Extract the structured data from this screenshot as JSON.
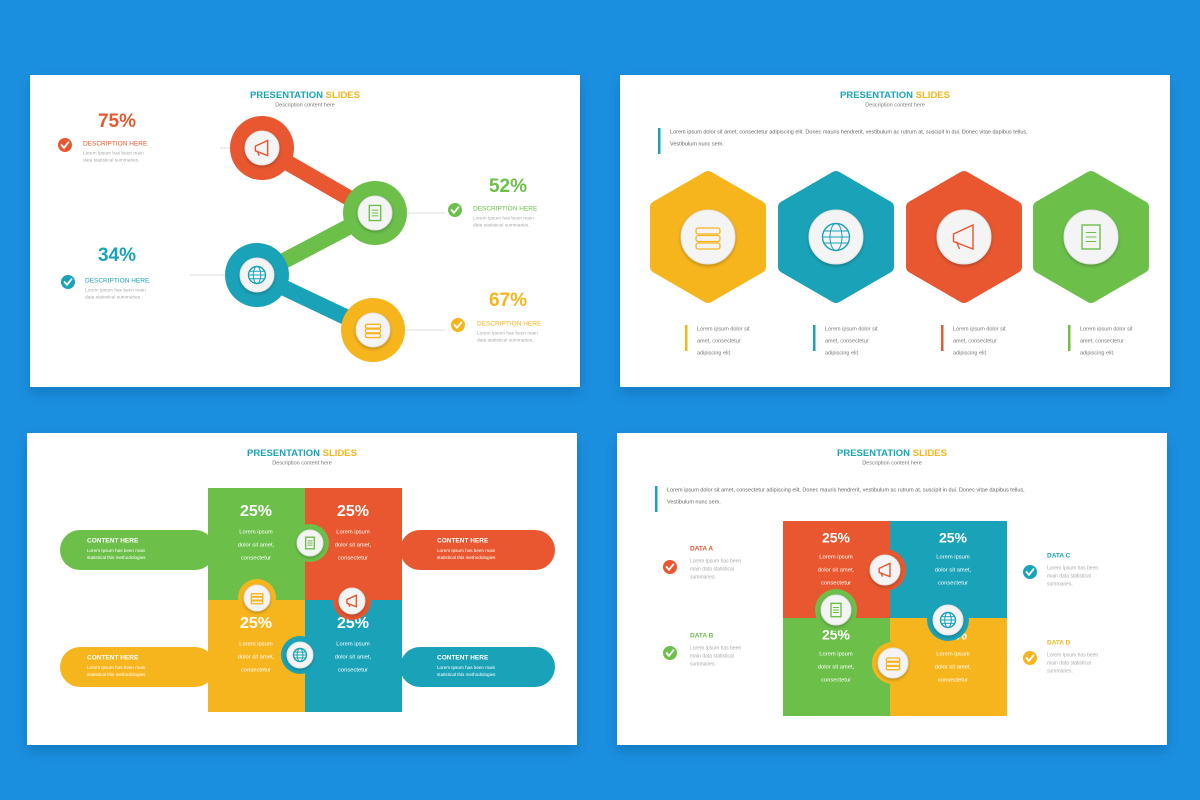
{
  "slides": [
    {
      "title": [
        "PRESENTATION",
        "SLIDES"
      ],
      "subtitle": "Description content here",
      "items": [
        {
          "value": "75%",
          "label": "DESCRIPTION HERE",
          "text": [
            "Lorem Ipsum has been main",
            "data statistical summaries."
          ]
        },
        {
          "value": "52%",
          "label": "DESCRIPTION HERE",
          "text": [
            "Lorem Ipsum has been main",
            "data statistical summaries."
          ]
        },
        {
          "value": "34%",
          "label": "DESCRIPTION HERE",
          "text": [
            "Lorem Ipsum has been main",
            "data statistical summaries."
          ]
        },
        {
          "value": "67%",
          "label": "DESCRIPTION HERE",
          "text": [
            "Lorem Ipsum has been main",
            "data statistical summaries."
          ]
        }
      ]
    },
    {
      "title": [
        "PRESENTATION",
        "SLIDES"
      ],
      "subtitle": "Description content here",
      "intro": [
        "Lorem ipsum dolor sit amet, consectetur adipiscing elit. Donec mauris hendrerit, vestibulum ac rutrum at, suscipit in dui. Donec vitae dapibus tellus,",
        "Vestibulum nunc sem."
      ],
      "items": [
        {
          "text": [
            "Lorem ipsum dolor sit",
            "amet, consectetur",
            "adipiscing elit."
          ]
        },
        {
          "text": [
            "Lorem ipsum dolor sit",
            "amet, consectetur",
            "adipiscing elit."
          ]
        },
        {
          "text": [
            "Lorem ipsum dolor sit",
            "amet, consectetur",
            "adipiscing elit."
          ]
        },
        {
          "text": [
            "Lorem ipsum dolor sit",
            "amet, consectetur",
            "adipiscing elit."
          ]
        }
      ]
    },
    {
      "title": [
        "PRESENTATION",
        "SLIDES"
      ],
      "subtitle": "Description content here",
      "tabs": [
        {
          "label": "CONTENT HERE",
          "text": [
            "Lorem Ipsum has been main",
            "statistical this methodologies"
          ]
        },
        {
          "label": "CONTENT HERE",
          "text": [
            "Lorem Ipsum has been main",
            "statistical this methodologies"
          ]
        },
        {
          "label": "CONTENT HERE",
          "text": [
            "Lorem Ipsum has been main",
            "statistical this methodologies"
          ]
        },
        {
          "label": "CONTENT HERE",
          "text": [
            "Lorem Ipsum has been main",
            "statistical this methodologies"
          ]
        }
      ],
      "pieces": [
        {
          "value": "25%",
          "text": [
            "Lorem ipsum",
            "dolor sit amet,",
            "consectetur"
          ]
        },
        {
          "value": "25%",
          "text": [
            "Lorem ipsum",
            "dolor sit amet,",
            "consectetur"
          ]
        },
        {
          "value": "25%",
          "text": [
            "Lorem ipsum",
            "dolor sit amet,",
            "consectetur"
          ]
        },
        {
          "value": "25%",
          "text": [
            "Lorem ipsum",
            "dolor sit amet,",
            "consectetur"
          ]
        }
      ]
    },
    {
      "title": [
        "PRESENTATION",
        "SLIDES"
      ],
      "subtitle": "Description content here",
      "intro": [
        "Lorem ipsum dolor sit amet, consectetur adipiscing elit. Donec mauris hendrerit, vestibulum ac rutrum at, suscipit in dui. Donec vitae dapibus tellus,",
        "Vestibulum nunc sem."
      ],
      "pieces": [
        {
          "value": "25%",
          "text": [
            "Lorem ipsum",
            "dolor sit amet,",
            "consectetur"
          ]
        },
        {
          "value": "25%",
          "text": [
            "Lorem ipsum",
            "dolor sit amet,",
            "consectetur"
          ]
        },
        {
          "value": "25%",
          "text": [
            "Lorem ipsum",
            "dolor sit amet,",
            "consectetur"
          ]
        },
        {
          "value": "25%",
          "text": [
            "Lorem ipsum",
            "dolor sit amet,",
            "consectetur"
          ]
        }
      ],
      "data": [
        {
          "label": "DATA A",
          "text": [
            "Lorem Ipsum has been",
            "main data statistical",
            "summaries."
          ]
        },
        {
          "label": "DATA B",
          "text": [
            "Lorem Ipsum has been",
            "main data statistical",
            "summaries."
          ]
        },
        {
          "label": "DATA C",
          "text": [
            "Lorem Ipsum has been",
            "main data statistical",
            "summaries."
          ]
        },
        {
          "label": "DATA D",
          "text": [
            "Lorem Ipsum has been",
            "main data statistical",
            "summaries."
          ]
        }
      ]
    }
  ]
}
